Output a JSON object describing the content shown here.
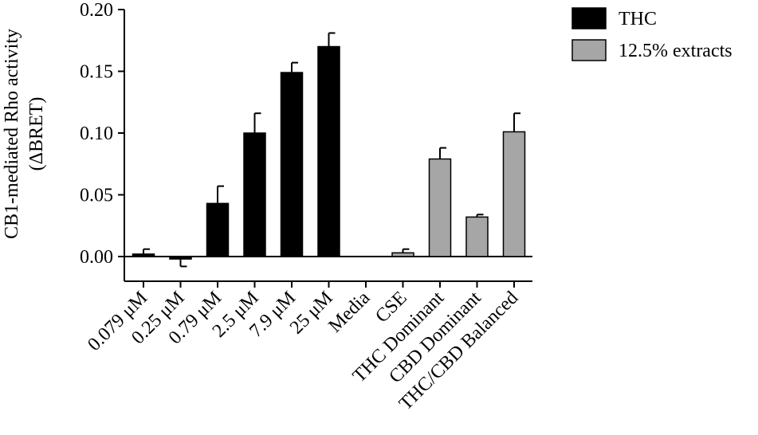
{
  "chart_data": {
    "type": "bar",
    "ylabel_line1": "CB1-mediated Rho activity",
    "ylabel_line2": "(ΔBRET)",
    "ylim": [
      -0.02,
      0.2
    ],
    "yticks": [
      "0.00",
      "0.05",
      "0.10",
      "0.15",
      "0.20"
    ],
    "ytick_values": [
      0.0,
      0.05,
      0.1,
      0.15,
      0.2
    ],
    "grid": false,
    "legend_placement": "top-right",
    "categories": [
      "0.079 μM",
      "0.25 μM",
      "0.79 μM",
      "2.5 μM",
      "7.9 μM",
      "25 μM",
      "Media",
      "CSE",
      "THC Dominant",
      "CBD Dominant",
      "THC/CBD Balanced"
    ],
    "series": [
      {
        "name": "THC",
        "color": "#000000",
        "values": [
          0.002,
          -0.002,
          0.043,
          0.1,
          0.149,
          0.17,
          null,
          null,
          null,
          null,
          null
        ],
        "errors": [
          0.004,
          0.006,
          0.014,
          0.016,
          0.008,
          0.011,
          null,
          null,
          null,
          null,
          null
        ]
      },
      {
        "name": "12.5% extracts",
        "color": "#a6a6a6",
        "values": [
          null,
          null,
          null,
          null,
          null,
          null,
          null,
          0.003,
          0.079,
          0.032,
          0.101
        ],
        "errors": [
          null,
          null,
          null,
          null,
          null,
          null,
          null,
          0.003,
          0.009,
          0.002,
          0.015
        ]
      }
    ]
  }
}
